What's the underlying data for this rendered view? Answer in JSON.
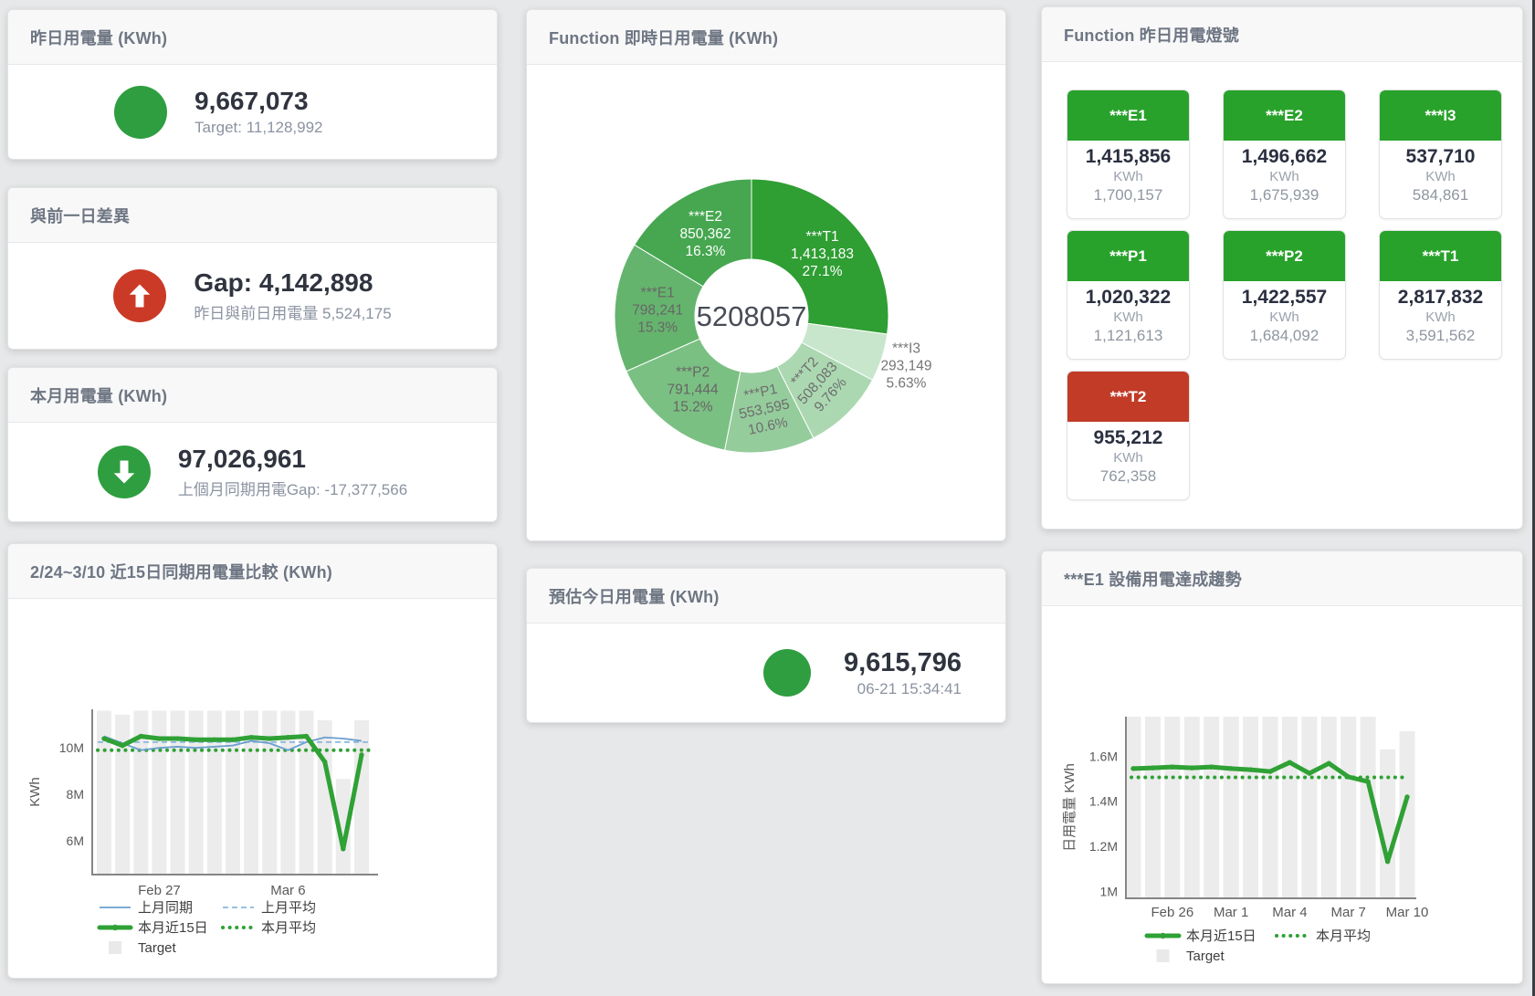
{
  "colors": {
    "green": "#2f9e41",
    "red": "#cb3a26",
    "tile_green": "#28a22b",
    "tile_red": "#c13b27"
  },
  "cards": {
    "yesterday": {
      "title": "昨日用電量 (KWh)",
      "value": "9,667,073",
      "subtitle": "Target: 11,128,992"
    },
    "diff": {
      "title": "與前一日差異",
      "value": "Gap: 4,142,898",
      "subtitle": "昨日與前日用電量 5,524,175",
      "icon": "arrow-up"
    },
    "month": {
      "title": "本月用電量 (KWh)",
      "value": "97,026,961",
      "subtitle": "上個月同期用電Gap: -17,377,566",
      "icon": "arrow-down"
    },
    "forecast": {
      "title": "預估今日用電量 (KWh)",
      "value": "9,615,796",
      "timestamp": "06-21 15:34:41"
    },
    "lights": {
      "title": "Function 昨日用電燈號",
      "tiles": [
        {
          "label": "***E1",
          "value": "1,415,856",
          "unit": "KWh",
          "target": "1,700,157",
          "status": "green"
        },
        {
          "label": "***E2",
          "value": "1,496,662",
          "unit": "KWh",
          "target": "1,675,939",
          "status": "green"
        },
        {
          "label": "***I3",
          "value": "537,710",
          "unit": "KWh",
          "target": "584,861",
          "status": "green"
        },
        {
          "label": "***P1",
          "value": "1,020,322",
          "unit": "KWh",
          "target": "1,121,613",
          "status": "green"
        },
        {
          "label": "***P2",
          "value": "1,422,557",
          "unit": "KWh",
          "target": "1,684,092",
          "status": "green"
        },
        {
          "label": "***T1",
          "value": "2,817,832",
          "unit": "KWh",
          "target": "3,591,562",
          "status": "green"
        },
        {
          "label": "***T2",
          "value": "955,212",
          "unit": "KWh",
          "target": "762,358",
          "status": "red"
        }
      ]
    }
  },
  "chart_data": [
    {
      "id": "compare15",
      "type": "line+bar",
      "title": "2/24~3/10 近15日同期用電量比較 (KWh)",
      "ylabel": "KWh",
      "unit": "M KWh",
      "x": [
        "2/24",
        "2/25",
        "2/26",
        "2/27",
        "2/28",
        "3/1",
        "3/2",
        "3/3",
        "3/4",
        "3/5",
        "3/6",
        "3/7",
        "3/8",
        "3/9",
        "3/10"
      ],
      "x_ticks": [
        {
          "i": 3,
          "label": "Feb 27"
        },
        {
          "i": 10,
          "label": "Mar 6"
        }
      ],
      "y_ticks": [
        {
          "v": 6,
          "label": "6M"
        },
        {
          "v": 8,
          "label": "8M"
        },
        {
          "v": 10,
          "label": "10M"
        }
      ],
      "ylim": [
        4.54,
        11.66
      ],
      "series": [
        {
          "name": "上月同期",
          "type": "line",
          "style": "thin",
          "color": "#6b9fce",
          "values": [
            10.5,
            10.2,
            9.9,
            10.0,
            10.05,
            10.0,
            10.05,
            10.1,
            10.3,
            10.2,
            9.9,
            10.25,
            10.45,
            10.4,
            10.3
          ]
        },
        {
          "name": "上月平均",
          "type": "line",
          "style": "dashed",
          "color": "#8ab7dd",
          "value": 10.25
        },
        {
          "name": "本月近15日",
          "type": "line",
          "style": "thick",
          "color": "#2fa135",
          "values": [
            10.4,
            10.1,
            10.5,
            10.4,
            10.4,
            10.35,
            10.35,
            10.35,
            10.45,
            10.4,
            10.45,
            10.5,
            9.4,
            5.65,
            9.7
          ]
        },
        {
          "name": "本月平均",
          "type": "line",
          "style": "dotted",
          "color": "#2fa135",
          "value": 9.9
        },
        {
          "name": "Target",
          "type": "bar",
          "color": "#ececec",
          "values": [
            11.6,
            11.43,
            11.6,
            11.6,
            11.6,
            11.6,
            11.6,
            11.6,
            11.6,
            11.6,
            11.6,
            11.6,
            11.19,
            8.66,
            11.19
          ]
        }
      ],
      "legend_position": "bottom"
    },
    {
      "id": "realtime",
      "type": "pie",
      "title": "Function 即時日用電量 (KWh)",
      "center_label": "5208057",
      "slices": [
        {
          "name": "***T1",
          "value": "1,413,183",
          "pct": "27.1%",
          "pct_num": 27.1,
          "color": "#2f9e33",
          "label_color": "#ffffff"
        },
        {
          "name": "***I3",
          "value": "293,149",
          "pct": "5.63%",
          "pct_num": 5.63,
          "color": "#c8e6cc",
          "label_color": "#757575",
          "label_outside": true
        },
        {
          "name": "***T2",
          "value": "508,083",
          "pct": "9.76%",
          "pct_num": 9.76,
          "color": "#abd8b1",
          "label_color": "#6e6e6e",
          "rotate": -48
        },
        {
          "name": "***P1",
          "value": "553,595",
          "pct": "10.6%",
          "pct_num": 10.6,
          "color": "#95cc9c",
          "label_color": "#6e6e6e",
          "rotate": -12
        },
        {
          "name": "***P2",
          "value": "791,444",
          "pct": "15.2%",
          "pct_num": 15.2,
          "color": "#7bc083",
          "label_color": "#666666"
        },
        {
          "name": "***E1",
          "value": "798,241",
          "pct": "15.3%",
          "pct_num": 15.3,
          "color": "#65b46e",
          "label_color": "#666666"
        },
        {
          "name": "***E2",
          "value": "850,362",
          "pct": "16.3%",
          "pct_num": 16.3,
          "color": "#46a750",
          "label_color": "#ffffff"
        }
      ]
    },
    {
      "id": "e1trend",
      "type": "line+bar",
      "title": "***E1 設備用電達成趨勢",
      "ylabel": "日用電量 KWh",
      "unit": "M KWh",
      "x": [
        "2/24",
        "2/25",
        "2/26",
        "2/27",
        "2/28",
        "3/1",
        "3/2",
        "3/3",
        "3/4",
        "3/5",
        "3/6",
        "3/7",
        "3/8",
        "3/9",
        "3/10"
      ],
      "x_ticks": [
        {
          "i": 2,
          "label": "Feb 26"
        },
        {
          "i": 5,
          "label": "Mar 1"
        },
        {
          "i": 8,
          "label": "Mar 4"
        },
        {
          "i": 11,
          "label": "Mar 7"
        },
        {
          "i": 14,
          "label": "Mar 10"
        }
      ],
      "y_ticks": [
        {
          "v": 1,
          "label": "1M"
        },
        {
          "v": 1.2,
          "label": "1.2M"
        },
        {
          "v": 1.4,
          "label": "1.4M"
        },
        {
          "v": 1.6,
          "label": "1.6M"
        }
      ],
      "ylim": [
        0.97,
        1.775
      ],
      "series": [
        {
          "name": "本月近15日",
          "type": "line",
          "style": "thick",
          "color": "#2fa135",
          "values": [
            1.545,
            1.548,
            1.552,
            1.548,
            1.552,
            1.545,
            1.54,
            1.532,
            1.572,
            1.524,
            1.568,
            1.508,
            1.487,
            1.133,
            1.419
          ]
        },
        {
          "name": "本月平均",
          "type": "line",
          "style": "dotted",
          "color": "#2fa135",
          "value": 1.506
        },
        {
          "name": "Target",
          "type": "bar",
          "color": "#ececec",
          "values": [
            1.78,
            1.78,
            1.78,
            1.78,
            1.78,
            1.78,
            1.78,
            1.78,
            1.78,
            1.78,
            1.78,
            1.78,
            1.78,
            1.63,
            1.71
          ]
        }
      ],
      "legend_position": "bottom"
    }
  ]
}
